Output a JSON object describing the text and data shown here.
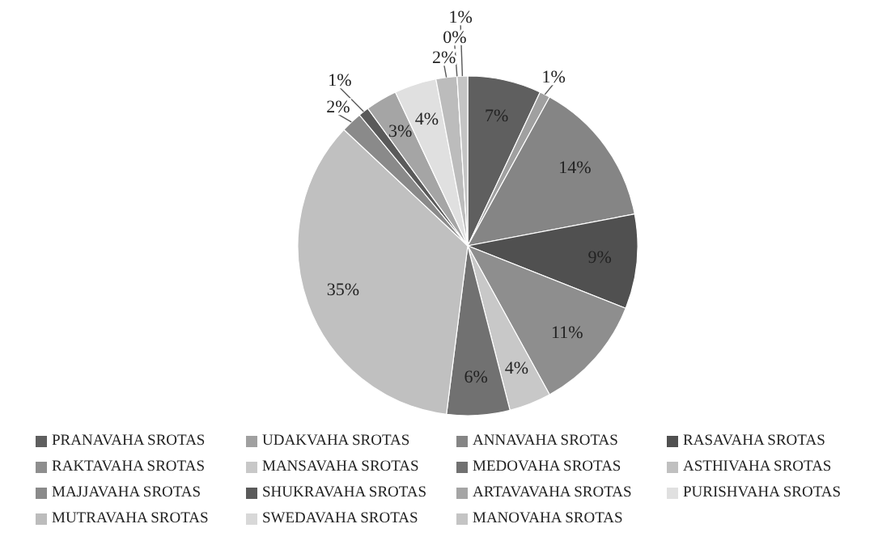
{
  "chart_data": {
    "type": "pie",
    "categories": [
      "PRANAVAHA SROTAS",
      "UDAKVAHA SROTAS",
      "ANNAVAHA SROTAS",
      "RASAVAHA SROTAS",
      "RAKTAVAHA SROTAS",
      "MANSAVAHA SROTAS",
      "MEDOVAHA SROTAS",
      "ASTHIVAHA SROTAS",
      "MAJJAVAHA SROTAS",
      "SHUKRAVAHA SROTAS",
      "ARTAVAVAHA SROTAS",
      "PURISHVAHA SROTAS",
      "MUTRAVAHA SROTAS",
      "SWEDAVAHA SROTAS",
      "MANOVAHA SROTAS"
    ],
    "values": [
      7,
      1,
      14,
      9,
      11,
      4,
      6,
      35,
      2,
      1,
      3,
      4,
      2,
      0,
      1
    ],
    "value_labels": [
      "7%",
      "1%",
      "14%",
      "9%",
      "11%",
      "4%",
      "6%",
      "35%",
      "2%",
      "1%",
      "3%",
      "4%",
      "2%",
      "0%",
      "1%"
    ],
    "colors": [
      "#5f5f5f",
      "#a0a0a0",
      "#858585",
      "#505050",
      "#8e8e8e",
      "#c8c8c8",
      "#717171",
      "#c0c0c0",
      "#8a8a8a",
      "#5a5a5a",
      "#a5a5a5",
      "#e0e0e0",
      "#bcbcbc",
      "#d8d8d8",
      "#c4c4c4"
    ],
    "legend": "bottom"
  }
}
